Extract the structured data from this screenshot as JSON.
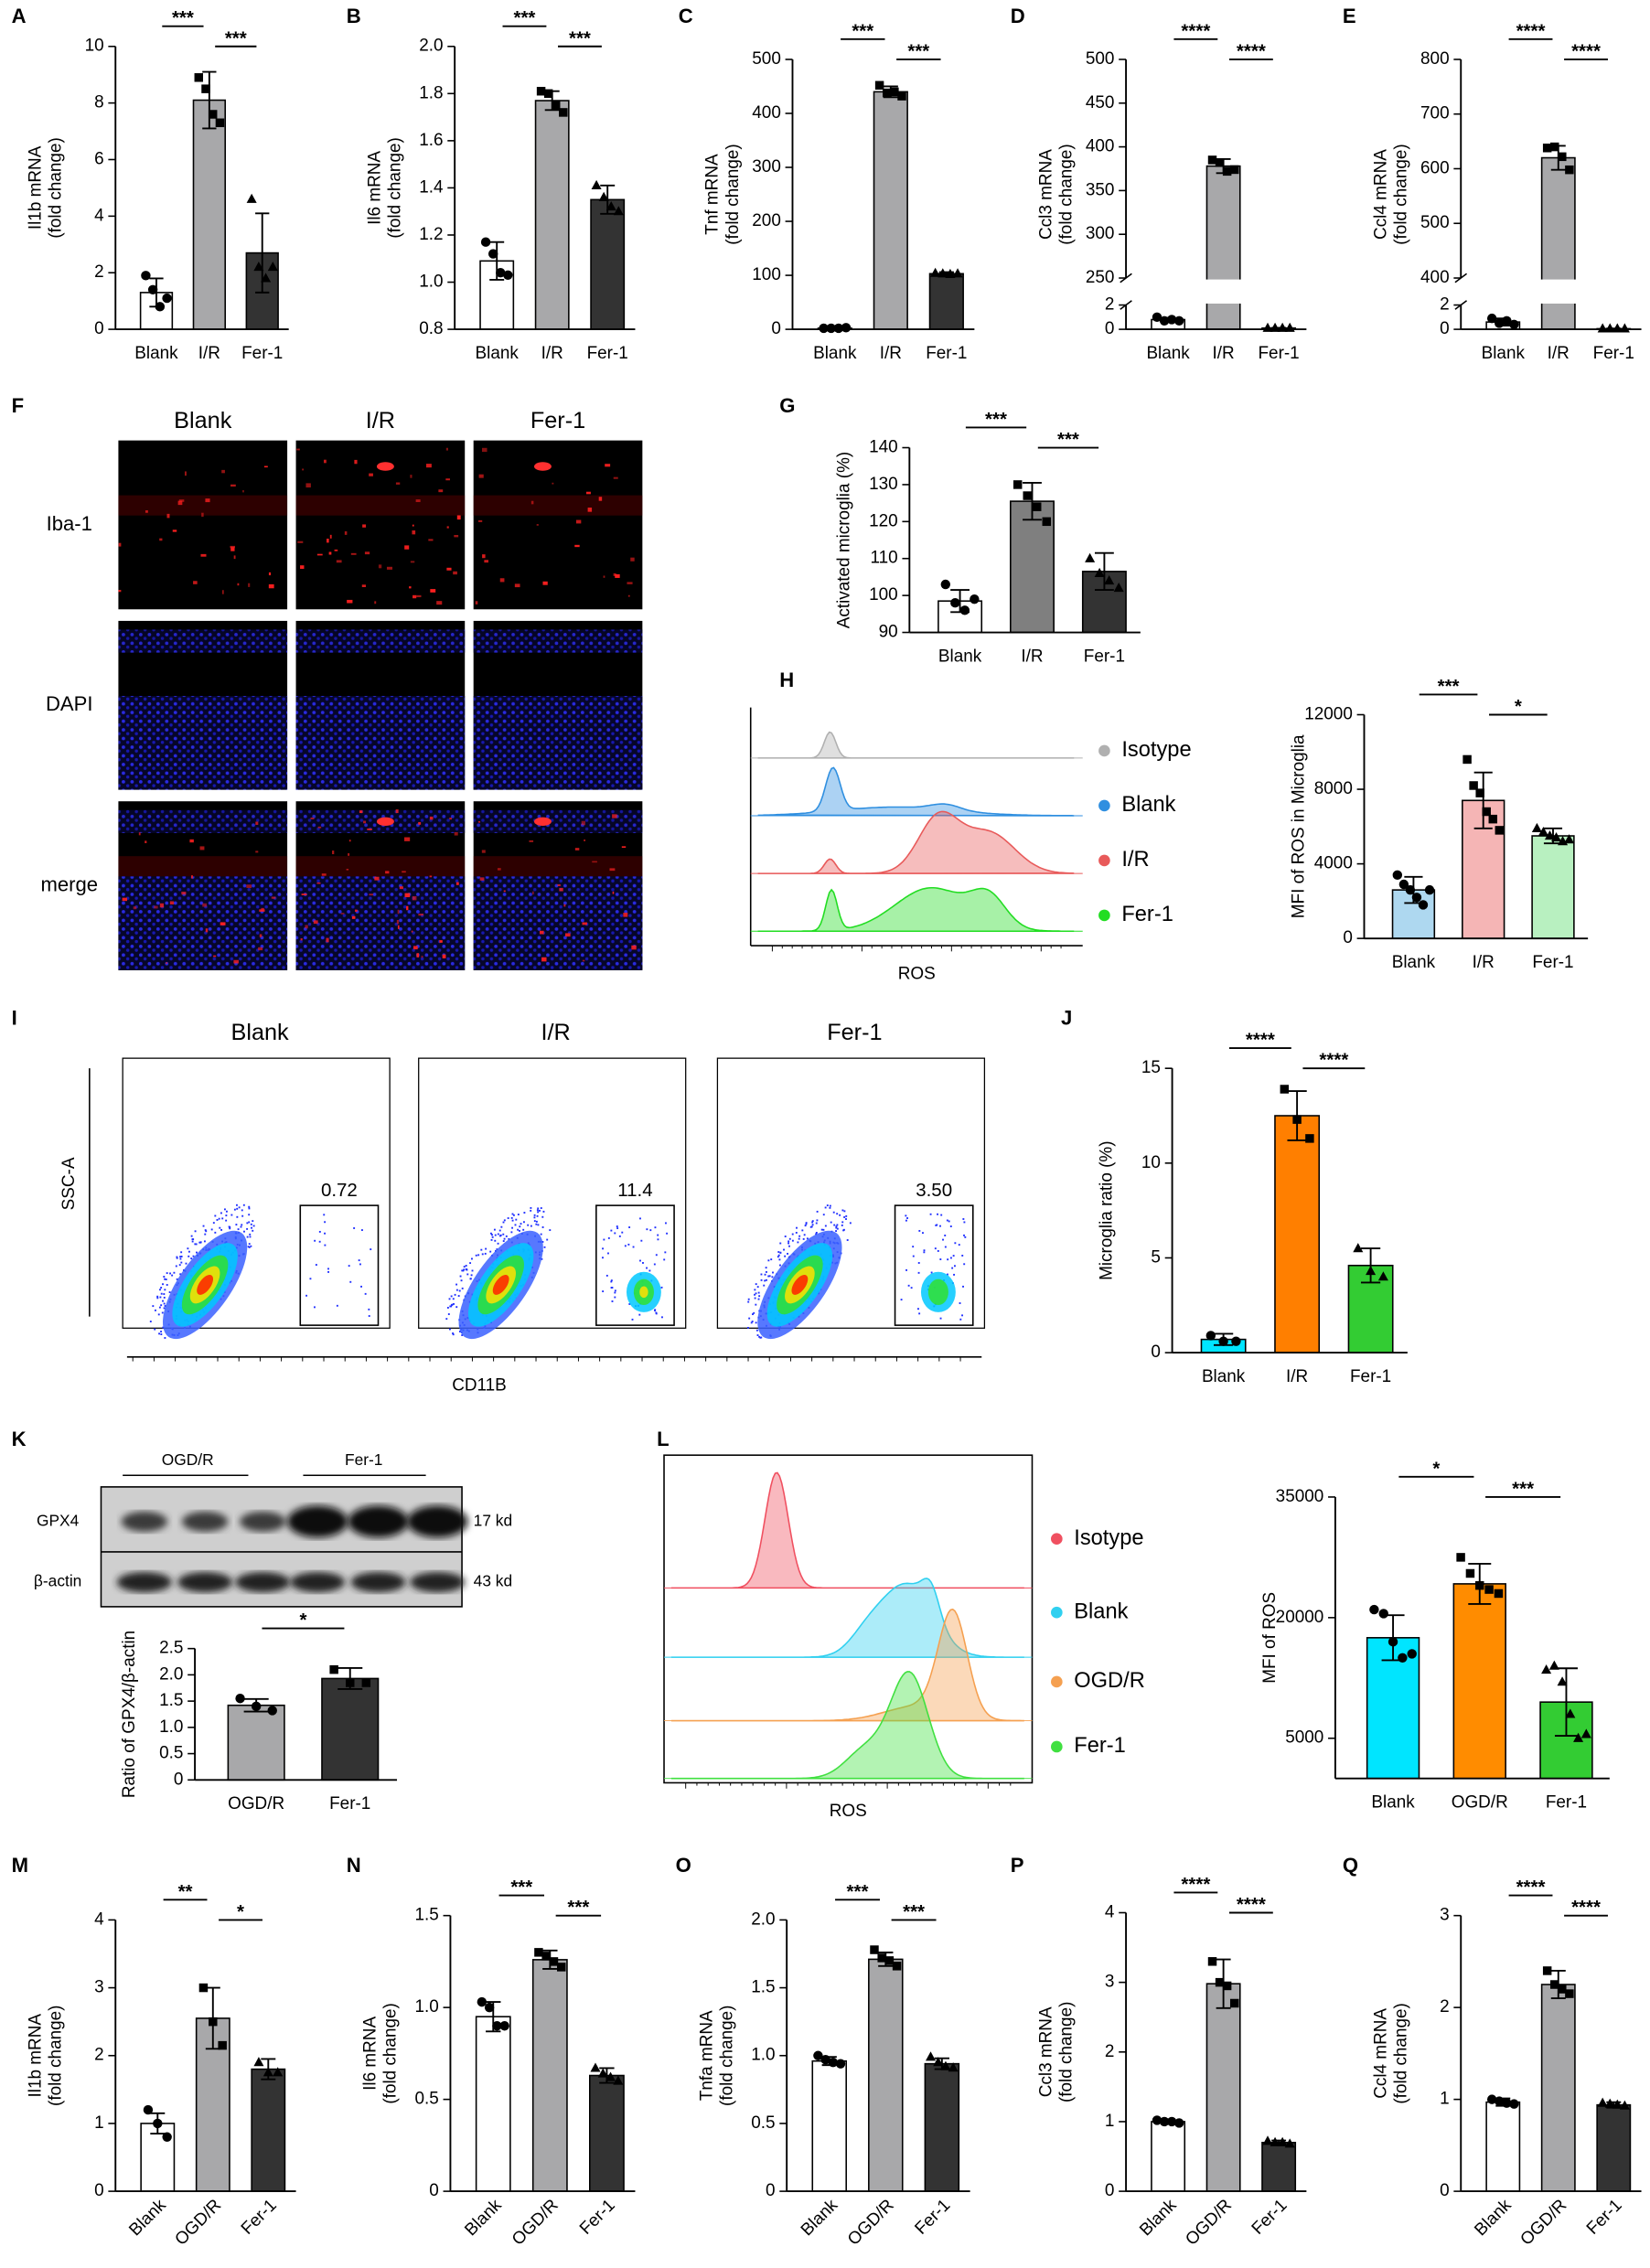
{
  "panel_letters": [
    "A",
    "B",
    "C",
    "D",
    "E",
    "F",
    "G",
    "H",
    "I",
    "J",
    "K",
    "L",
    "M",
    "N",
    "O",
    "P",
    "Q"
  ],
  "microscopy": {
    "columns": [
      "Blank",
      "I/R",
      "Fer-1"
    ],
    "rows": [
      "Iba-1",
      "DAPI",
      "merge"
    ]
  },
  "histogram_h": {
    "legend": [
      {
        "name": "Isotype",
        "color": "#b0b0b0"
      },
      {
        "name": "Blank",
        "color": "#2f8fe0"
      },
      {
        "name": "I/R",
        "color": "#e85a5a"
      },
      {
        "name": "Fer-1",
        "color": "#22dd22"
      }
    ],
    "xlabel": "ROS"
  },
  "flow_i": {
    "columns": [
      "Blank",
      "I/R",
      "Fer-1"
    ],
    "gates": [
      "0.72",
      "11.4",
      "3.50"
    ],
    "ylabel": "SSC-A",
    "xlabel": "CD11B"
  },
  "blot_k": {
    "groups": [
      "OGD/R",
      "Fer-1"
    ],
    "rows": [
      "GPX4",
      "β-actin"
    ],
    "sizes": [
      "17 kd",
      "43 kd"
    ]
  },
  "histogram_l": {
    "legend": [
      {
        "name": "Isotype",
        "color": "#f05060"
      },
      {
        "name": "Blank",
        "color": "#30d0f0"
      },
      {
        "name": "OGD/R",
        "color": "#f5a050"
      },
      {
        "name": "Fer-1",
        "color": "#40e040"
      }
    ],
    "xlabel": "ROS"
  },
  "chart_data": [
    {
      "type": "bar",
      "ylabel": [
        "Il1b mRNA",
        "(fold change)"
      ],
      "categories": [
        "Blank",
        "I/R",
        "Fer-1"
      ],
      "values": [
        1.3,
        8.1,
        2.7
      ],
      "errors": [
        0.5,
        1.0,
        1.4
      ],
      "points": [
        [
          1.9,
          1.4,
          0.8,
          1.1
        ],
        [
          8.9,
          8.5,
          7.6,
          7.3
        ],
        [
          4.6,
          2.2,
          1.8,
          2.2
        ]
      ],
      "colors": [
        "#ffffff",
        "#a8a8aa",
        "#333333"
      ],
      "ylim": [
        0,
        10
      ],
      "yticks": [
        0,
        2,
        4,
        6,
        8,
        10
      ],
      "significance": [
        "***",
        "***"
      ]
    },
    {
      "type": "bar",
      "ylabel": [
        "Il6 mRNA",
        "(fold change)"
      ],
      "categories": [
        "Blank",
        "I/R",
        "Fer-1"
      ],
      "values": [
        1.09,
        1.77,
        1.35
      ],
      "errors": [
        0.08,
        0.04,
        0.06
      ],
      "points": [
        [
          1.17,
          1.12,
          1.04,
          1.03
        ],
        [
          1.81,
          1.8,
          1.75,
          1.72
        ],
        [
          1.41,
          1.36,
          1.32,
          1.3
        ]
      ],
      "colors": [
        "#ffffff",
        "#a8a8aa",
        "#333333"
      ],
      "ylim": [
        0.8,
        2
      ],
      "yticks": [
        0.8,
        {
          "value": 1,
          "label": "1.0"
        },
        1.2,
        1.4,
        1.6,
        1.8,
        {
          "value": 2,
          "label": "2.0"
        }
      ],
      "significance": [
        "***",
        "***"
      ]
    },
    {
      "type": "bar",
      "ylabel": [
        "Tnf mRNA",
        "(fold change)"
      ],
      "categories": [
        "Blank",
        "I/R",
        "Fer-1"
      ],
      "values": [
        2,
        440,
        103
      ],
      "errors": [
        1,
        10,
        3
      ],
      "points": [
        [
          2,
          2,
          2,
          3
        ],
        [
          452,
          438,
          440,
          432
        ],
        [
          104,
          103,
          102,
          103
        ]
      ],
      "colors": [
        "#ffffff",
        "#a8a8aa",
        "#333333"
      ],
      "ylim": [
        0,
        500
      ],
      "yticks": [
        0,
        100,
        200,
        300,
        400,
        500
      ],
      "significance": [
        "***",
        "***"
      ]
    },
    {
      "type": "bar",
      "ylabel": [
        "Ccl3 mRNA",
        "(fold change)"
      ],
      "categories": [
        "Blank",
        "I/R",
        "Fer-1"
      ],
      "values": [
        0.8,
        378,
        0.1
      ],
      "errors": [
        0.15,
        8,
        0.02
      ],
      "points": [
        [
          1,
          0.7,
          0.8,
          0.7
        ],
        [
          385,
          382,
          372,
          374
        ],
        [
          0.1,
          0.1,
          0.1,
          0.1
        ]
      ],
      "colors": [
        "#ffffff",
        "#a8a8aa",
        "#333333"
      ],
      "ylim": [
        0,
        500
      ],
      "ybreak": [
        2,
        250
      ],
      "yticks": [
        0,
        2,
        250,
        300,
        350,
        400,
        450,
        500
      ],
      "significance": [
        "****",
        "****"
      ]
    },
    {
      "type": "bar",
      "ylabel": [
        "Ccl4 mRNA",
        "(fold change)"
      ],
      "categories": [
        "Blank",
        "I/R",
        "Fer-1"
      ],
      "values": [
        0.6,
        620,
        0.05
      ],
      "errors": [
        0.3,
        22,
        0.02
      ],
      "points": [
        [
          0.9,
          0.5,
          0.7,
          0.4
        ],
        [
          638,
          640,
          622,
          598
        ],
        [
          0.05,
          0.05,
          0.05,
          0.05
        ]
      ],
      "colors": [
        "#ffffff",
        "#a8a8aa",
        "#333333"
      ],
      "ylim": [
        0,
        800
      ],
      "ybreak": [
        2,
        400
      ],
      "yticks": [
        0,
        2,
        400,
        500,
        600,
        700,
        800
      ],
      "significance": [
        "****",
        "****"
      ]
    },
    {
      "type": "bar",
      "ylabel": [
        "Activated microglia (%)"
      ],
      "categories": [
        "Blank",
        "I/R",
        "Fer-1"
      ],
      "values": [
        98.5,
        125.5,
        106.5
      ],
      "errors": [
        3,
        5,
        5
      ],
      "points": [
        [
          103,
          98,
          96,
          99
        ],
        [
          130,
          127,
          124,
          120
        ],
        [
          110,
          106,
          104,
          102
        ]
      ],
      "colors": [
        "#ffffff",
        "#7f7f7f",
        "#333333"
      ],
      "ylim": [
        90,
        140
      ],
      "yticks": [
        90,
        100,
        110,
        120,
        130,
        140
      ],
      "significance": [
        "***",
        "***"
      ]
    },
    {
      "type": "bar",
      "ylabel": [
        "MFI of ROS in Microglia"
      ],
      "categories": [
        "Blank",
        "I/R",
        "Fer-1"
      ],
      "values": [
        2600,
        7400,
        5500
      ],
      "errors": [
        700,
        1500,
        400
      ],
      "points": [
        [
          3400,
          2900,
          2600,
          2200,
          1800,
          2600
        ],
        [
          9600,
          8200,
          7800,
          6800,
          6400,
          5800
        ],
        [
          5900,
          5700,
          5500,
          5400,
          5200,
          5300
        ]
      ],
      "colors": [
        "#aed8f0",
        "#f5b5b5",
        "#b8f0c0"
      ],
      "ylim": [
        0,
        12000
      ],
      "yticks": [
        0,
        4000,
        8000,
        12000
      ],
      "significance": [
        "***",
        "*"
      ]
    },
    {
      "type": "bar",
      "ylabel": [
        "Microglia ratio (%)"
      ],
      "categories": [
        "Blank",
        "I/R",
        "Fer-1"
      ],
      "values": [
        0.7,
        12.5,
        4.6
      ],
      "errors": [
        0.3,
        1.3,
        0.9
      ],
      "points": [
        [
          0.9,
          0.6,
          0.6
        ],
        [
          13.9,
          12.3,
          11.3
        ],
        [
          5.5,
          4.3,
          4
        ]
      ],
      "colors": [
        "#00e5ff",
        "#ff7f00",
        "#33cc33"
      ],
      "ylim": [
        0,
        15
      ],
      "yticks": [
        0,
        5,
        10,
        15
      ],
      "significance": [
        "****",
        "****"
      ]
    },
    {
      "type": "bar",
      "ylabel": [
        "Ratio of GPX4/β-actin"
      ],
      "categories": [
        "OGD/R",
        "Fer-1"
      ],
      "values": [
        1.42,
        1.93
      ],
      "errors": [
        0.12,
        0.2
      ],
      "points": [
        [
          1.55,
          1.4,
          1.32
        ],
        [
          2.1,
          1.85,
          1.85
        ]
      ],
      "colors": [
        "#a8a8aa",
        "#333333"
      ],
      "ylim": [
        0,
        2.5
      ],
      "yticks": [
        0,
        0.5,
        {
          "value": 1,
          "label": "1.0"
        },
        1.5,
        {
          "value": 2,
          "label": "2.0"
        },
        2.5
      ],
      "significance": [
        "*"
      ]
    },
    {
      "type": "bar",
      "ylabel": [
        "MFI of ROS"
      ],
      "categories": [
        "Blank",
        "OGD/R",
        "Fer-1"
      ],
      "values": [
        17500,
        24200,
        9500
      ],
      "errors": [
        2800,
        2500,
        4200
      ],
      "points": [
        [
          21000,
          20500,
          17000,
          15000,
          15500
        ],
        [
          27500,
          25500,
          24000,
          23500,
          23000
        ],
        [
          13500,
          14000,
          12000,
          8000,
          5000,
          5500
        ]
      ],
      "colors": [
        "#00e5ff",
        "#ff8c00",
        "#33cc33"
      ],
      "ylim": [
        0,
        35000
      ],
      "yticks": [
        5000,
        20000,
        35000
      ],
      "significance": [
        "*",
        "***"
      ]
    },
    {
      "type": "bar",
      "ylabel": [
        "Il1b mRNA",
        "(fold change)"
      ],
      "categories": [
        "Blank",
        "OGD/R",
        "Fer-1"
      ],
      "values": [
        1,
        2.55,
        1.8
      ],
      "errors": [
        0.15,
        0.45,
        0.15
      ],
      "points": [
        [
          1.2,
          1,
          0.8
        ],
        [
          3,
          2.5,
          2.15
        ],
        [
          1.9,
          1.75,
          1.75
        ]
      ],
      "colors": [
        "#ffffff",
        "#a8a8aa",
        "#333333"
      ],
      "ylim": [
        0,
        4
      ],
      "yticks": [
        0,
        1,
        2,
        3,
        4
      ],
      "significance": [
        "**",
        "*"
      ]
    },
    {
      "type": "bar",
      "ylabel": [
        "Il6 mRNA",
        "(fold change)"
      ],
      "categories": [
        "Blank",
        "OGD/R",
        "Fer-1"
      ],
      "values": [
        0.95,
        1.26,
        0.63
      ],
      "errors": [
        0.08,
        0.05,
        0.04
      ],
      "points": [
        [
          1.03,
          1,
          0.9,
          0.9
        ],
        [
          1.3,
          1.28,
          1.25,
          1.22
        ],
        [
          0.67,
          0.64,
          0.62,
          0.6
        ]
      ],
      "colors": [
        "#ffffff",
        "#a8a8aa",
        "#333333"
      ],
      "ylim": [
        0,
        1.5
      ],
      "yticks": [
        0,
        0.5,
        {
          "value": 1,
          "label": "1.0"
        },
        1.5
      ],
      "significance": [
        "***",
        "***"
      ]
    },
    {
      "type": "bar",
      "ylabel": [
        "Tnfa mRNA",
        "(fold change)"
      ],
      "categories": [
        "Blank",
        "OGD/R",
        "Fer-1"
      ],
      "values": [
        0.96,
        1.71,
        0.94
      ],
      "errors": [
        0.03,
        0.05,
        0.04
      ],
      "points": [
        [
          1,
          0.97,
          0.95,
          0.94
        ],
        [
          1.78,
          1.72,
          1.7,
          1.66
        ],
        [
          0.99,
          0.95,
          0.92,
          0.91
        ]
      ],
      "colors": [
        "#ffffff",
        "#a8a8aa",
        "#333333"
      ],
      "ylim": [
        0,
        2
      ],
      "yticks": [
        0,
        0.5,
        {
          "value": 1,
          "label": "1.0"
        },
        1.5,
        {
          "value": 2,
          "label": "2.0"
        }
      ],
      "significance": [
        "***",
        "***"
      ]
    },
    {
      "type": "bar",
      "ylabel": [
        "Ccl3 mRNA",
        "(fold change)"
      ],
      "categories": [
        "Blank",
        "OGD/R",
        "Fer-1"
      ],
      "values": [
        1,
        2.98,
        0.7
      ],
      "errors": [
        0.03,
        0.35,
        0.03
      ],
      "points": [
        [
          1.02,
          1,
          1,
          0.98
        ],
        [
          3.3,
          3,
          2.95,
          2.7
        ],
        [
          0.72,
          0.7,
          0.7,
          0.68
        ]
      ],
      "colors": [
        "#ffffff",
        "#a8a8aa",
        "#333333"
      ],
      "ylim": [
        0,
        4
      ],
      "yticks": [
        0,
        1,
        2,
        3,
        4
      ],
      "significance": [
        "****",
        "****"
      ]
    },
    {
      "type": "bar",
      "ylabel": [
        "Ccl4 mRNA",
        "(fold change)"
      ],
      "categories": [
        "Blank",
        "OGD/R",
        "Fer-1"
      ],
      "values": [
        0.97,
        2.25,
        0.94
      ],
      "errors": [
        0.04,
        0.15,
        0.03
      ],
      "points": [
        [
          1,
          0.98,
          0.96,
          0.95
        ],
        [
          2.4,
          2.25,
          2.2,
          2.15
        ],
        [
          0.96,
          0.95,
          0.94,
          0.93
        ]
      ],
      "colors": [
        "#ffffff",
        "#a8a8aa",
        "#333333"
      ],
      "ylim": [
        0,
        3
      ],
      "yticks": [
        0,
        1,
        2,
        3
      ],
      "significance": [
        "****",
        "****"
      ]
    }
  ]
}
